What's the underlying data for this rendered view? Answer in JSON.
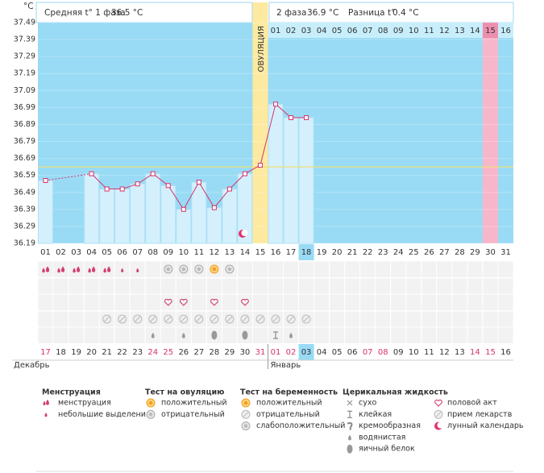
{
  "header": {
    "unit": "°C",
    "phase1": "Средняя t° 1 фаза",
    "phase1_value": "36.5 °C",
    "phase2": "2 фаза",
    "phase2_value": "36.9 °C",
    "difference": "Разница t°",
    "difference_value": "0.4 °C"
  },
  "chart_data": {
    "type": "line",
    "categories": [
      "01",
      "02",
      "03",
      "04",
      "05",
      "06",
      "07",
      "08",
      "09",
      "10",
      "11",
      "12",
      "13",
      "14",
      "15",
      "16",
      "17",
      "18",
      "19",
      "20",
      "21",
      "22",
      "23",
      "24",
      "25",
      "26",
      "27",
      "28",
      "29",
      "30",
      "31"
    ],
    "values": [
      36.56,
      null,
      null,
      36.6,
      36.51,
      36.51,
      36.54,
      36.6,
      36.53,
      36.39,
      36.55,
      36.4,
      36.51,
      36.6,
      36.65,
      37.01,
      36.93,
      36.93,
      null,
      null,
      null,
      null,
      null,
      null,
      null,
      null,
      null,
      null,
      null,
      null,
      null
    ],
    "color": "#d6336c",
    "ylim": [
      36.19,
      37.49
    ],
    "yticks": [
      36.19,
      36.29,
      36.39,
      36.49,
      36.59,
      36.69,
      36.79,
      36.89,
      36.99,
      37.09,
      37.19,
      37.29,
      37.39,
      37.49
    ],
    "coverline": 36.64,
    "ovulation_label": "ОВУЛЯЦИЯ",
    "phase2_days": [
      "01",
      "02",
      "03",
      "04",
      "05",
      "06",
      "07",
      "08",
      "09",
      "10",
      "11",
      "12",
      "13",
      "14",
      "15",
      "16"
    ]
  },
  "calendar": {
    "days": [
      "17",
      "18",
      "19",
      "20",
      "21",
      "22",
      "23",
      "24",
      "25",
      "26",
      "27",
      "28",
      "29",
      "30",
      "31",
      "01",
      "02",
      "03",
      "04",
      "05",
      "06",
      "07",
      "08",
      "09",
      "10",
      "11",
      "12",
      "13",
      "14",
      "15",
      "16"
    ],
    "months": [
      "Декабрь",
      "Январь"
    ]
  },
  "legend": {
    "menstruation": {
      "title": "Менструация",
      "items": [
        "менструация",
        "небольшие выделения"
      ]
    },
    "ovulation_test": {
      "title": "Тест на овуляцию",
      "items": [
        "положительный",
        "отрицательный"
      ]
    },
    "pregnancy_test": {
      "title": "Тест на беременность",
      "items": [
        "положительный",
        "отрицательный",
        "слабоположительный"
      ]
    },
    "cervical_fluid": {
      "title": "Церикальная жидкость",
      "items": [
        "сухо",
        "клейкая",
        "кремообразная",
        "водянистая",
        "яичный белок"
      ]
    },
    "other": {
      "items": [
        "половой акт",
        "прием лекарств",
        "лунный календарь"
      ]
    }
  }
}
